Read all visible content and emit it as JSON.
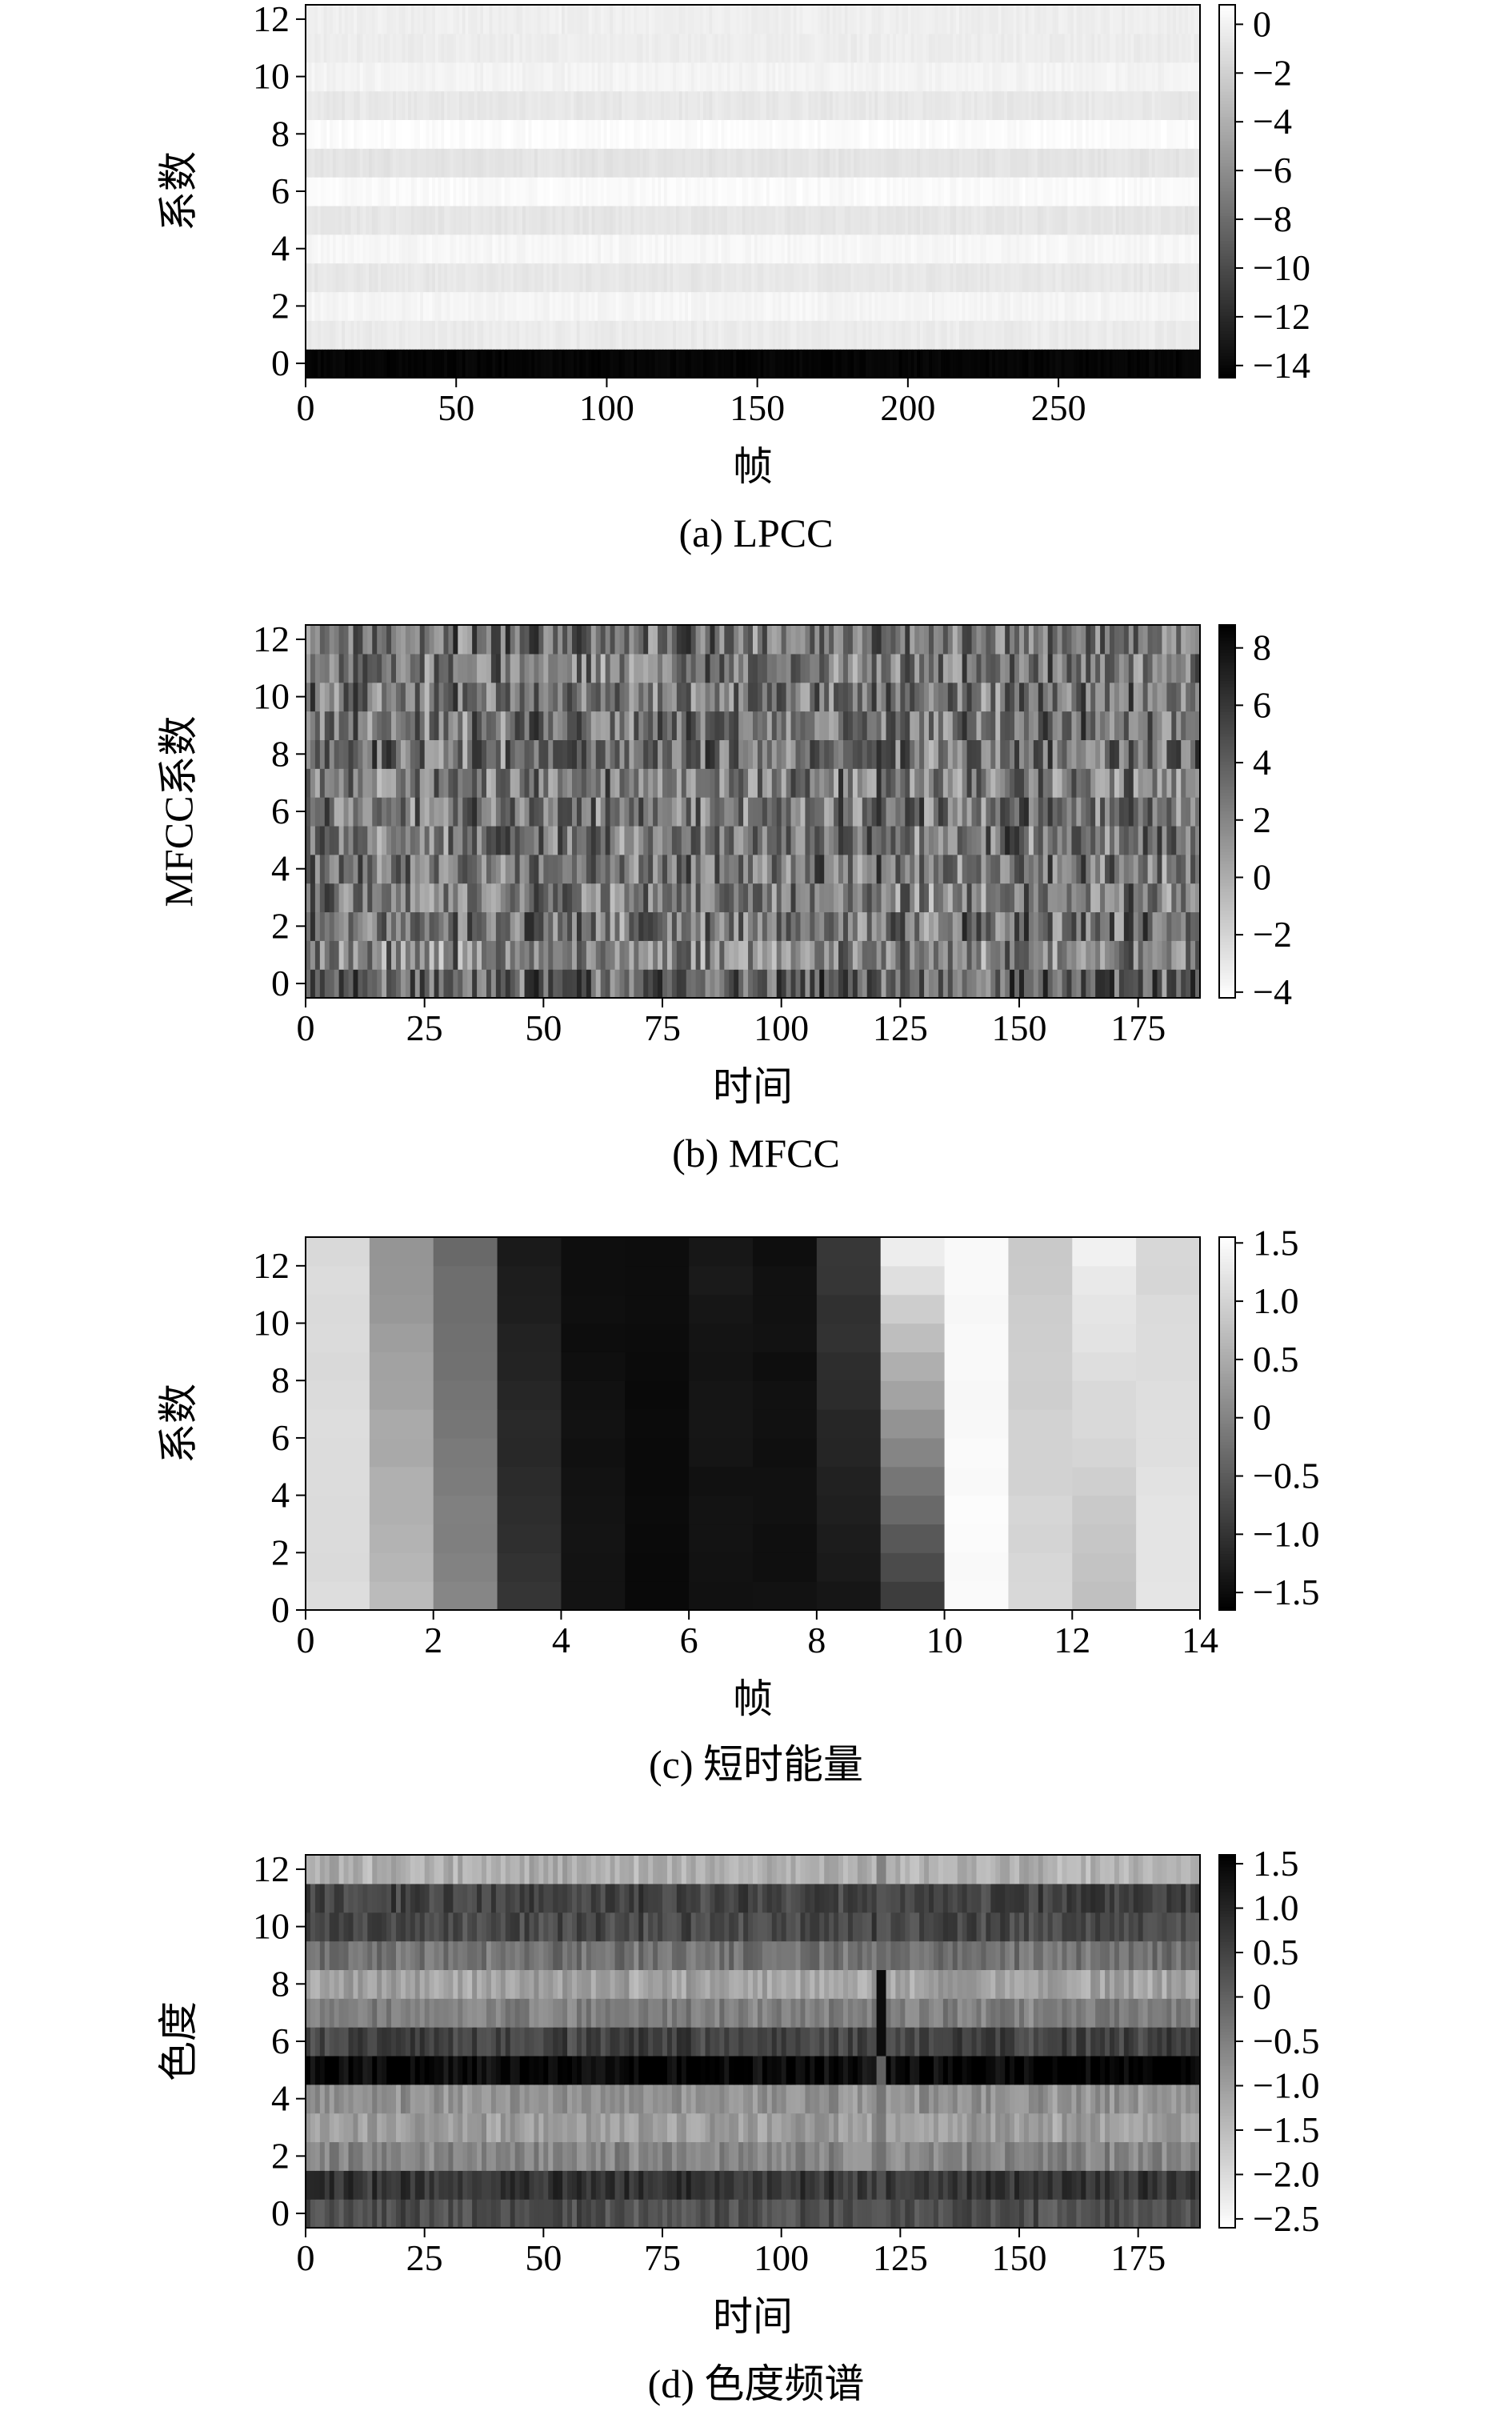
{
  "colors": {
    "ink": "#000000",
    "background": "#ffffff"
  },
  "chart_data": [
    {
      "type": "heatmap",
      "ylabel": "系数",
      "xlabel": "帧",
      "caption": "(a) LPCC",
      "x_ticks": [
        "0",
        "50",
        "100",
        "150",
        "200",
        "250"
      ],
      "x_tick_values": [
        0,
        50,
        100,
        150,
        200,
        250
      ],
      "xlim": [
        0,
        297
      ],
      "y_ticks": [
        "0",
        "2",
        "4",
        "6",
        "8",
        "10",
        "12"
      ],
      "y_tick_values": [
        0,
        2,
        4,
        6,
        8,
        10,
        12
      ],
      "ylim": [
        -0.5,
        12.5
      ],
      "colorbar": {
        "ticks": [
          "0",
          "−2",
          "−4",
          "−6",
          "−8",
          "−10",
          "−12",
          "−14"
        ],
        "tick_values": [
          0,
          -2,
          -4,
          -6,
          -8,
          -10,
          -12,
          -14
        ],
        "range": [
          -14.5,
          0.8
        ],
        "colormap": "gray (low = black, high = white)"
      },
      "n_cols": 297,
      "row_mean_values": [
        -14.2,
        -0.4,
        0.2,
        -0.6,
        0.3,
        -0.7,
        0.5,
        -0.8,
        0.6,
        -0.6,
        0.1,
        -0.3,
        -0.2
      ],
      "cell_variation": 0.25
    },
    {
      "type": "heatmap",
      "ylabel": "MFCC系数",
      "xlabel": "时间",
      "caption": "(b) MFCC",
      "x_ticks": [
        "0",
        "25",
        "50",
        "75",
        "100",
        "125",
        "150",
        "175"
      ],
      "x_tick_values": [
        0,
        25,
        50,
        75,
        100,
        125,
        150,
        175
      ],
      "xlim": [
        0,
        188
      ],
      "y_ticks": [
        "0",
        "2",
        "4",
        "6",
        "8",
        "10",
        "12"
      ],
      "y_tick_values": [
        0,
        2,
        4,
        6,
        8,
        10,
        12
      ],
      "ylim": [
        -0.5,
        12.5
      ],
      "colorbar": {
        "ticks": [
          "8",
          "6",
          "4",
          "2",
          "0",
          "−2",
          "−4"
        ],
        "tick_values": [
          8,
          6,
          4,
          2,
          0,
          -2,
          -4
        ],
        "range": [
          -4.2,
          8.8
        ],
        "colormap": "reversed gray (low = white, high = black)"
      },
      "n_cols": 188,
      "row_mean_values": [
        3.8,
        2.0,
        3.0,
        2.5,
        2.8,
        3.0,
        2.8,
        2.6,
        3.2,
        2.9,
        3.0,
        2.7,
        3.1
      ],
      "cell_variation": 3.2
    },
    {
      "type": "heatmap",
      "ylabel": "系数",
      "xlabel": "帧",
      "caption": "(c) 短时能量",
      "x_ticks": [
        "0",
        "2",
        "4",
        "6",
        "8",
        "10",
        "12",
        "14"
      ],
      "x_tick_values": [
        0,
        2,
        4,
        6,
        8,
        10,
        12,
        14
      ],
      "xlim": [
        0,
        14
      ],
      "y_ticks": [
        "0",
        "2",
        "4",
        "6",
        "8",
        "10",
        "12"
      ],
      "y_tick_values": [
        0,
        2,
        4,
        6,
        8,
        10,
        12
      ],
      "ylim": [
        0,
        13
      ],
      "colorbar": {
        "ticks": [
          "1.5",
          "1.0",
          "0.5",
          "0",
          "−0.5",
          "−1.0",
          "−1.5"
        ],
        "tick_values": [
          1.5,
          1.0,
          0.5,
          0,
          -0.5,
          -1.0,
          -1.5
        ],
        "range": [
          -1.65,
          1.55
        ],
        "colormap": "gray (low = black, high = white)"
      },
      "n_cols": 14,
      "column_values_bottom": [
        1.1,
        0.7,
        0.0,
        -1.0,
        -1.4,
        -1.55,
        -1.45,
        -1.45,
        -1.35,
        -0.9,
        1.5,
        1.05,
        0.75,
        1.25
      ],
      "column_values_top": [
        1.1,
        0.2,
        -0.3,
        -1.3,
        -1.5,
        -1.5,
        -1.35,
        -1.45,
        -0.95,
        1.3,
        1.45,
        0.9,
        1.35,
        1.05
      ],
      "cell_variation": 0.06
    },
    {
      "type": "heatmap",
      "ylabel": "色度",
      "xlabel": "时间",
      "caption": "(d) 色度频谱",
      "x_ticks": [
        "0",
        "25",
        "50",
        "75",
        "100",
        "125",
        "150",
        "175"
      ],
      "x_tick_values": [
        0,
        25,
        50,
        75,
        100,
        125,
        150,
        175
      ],
      "xlim": [
        0,
        188
      ],
      "y_ticks": [
        "0",
        "2",
        "4",
        "6",
        "8",
        "10",
        "12"
      ],
      "y_tick_values": [
        0,
        2,
        4,
        6,
        8,
        10,
        12
      ],
      "ylim": [
        -0.5,
        12.5
      ],
      "colorbar": {
        "ticks": [
          "1.5",
          "1.0",
          "0.5",
          "0",
          "−0.5",
          "−1.0",
          "−1.5",
          "−2.0",
          "−2.5"
        ],
        "tick_values": [
          1.5,
          1.0,
          0.5,
          0,
          -0.5,
          -1.0,
          -1.5,
          -2.0,
          -2.5
        ],
        "range": [
          -2.6,
          1.6
        ],
        "colormap": "reversed gray (low = white, high = black)"
      },
      "n_cols": 188,
      "row_mean_values": [
        0.3,
        0.7,
        -0.6,
        -1.0,
        -0.8,
        1.5,
        0.5,
        -0.5,
        -1.1,
        -0.3,
        0.4,
        0.5,
        -1.3
      ],
      "cell_variation": 0.35,
      "distinct_column": 120
    }
  ]
}
